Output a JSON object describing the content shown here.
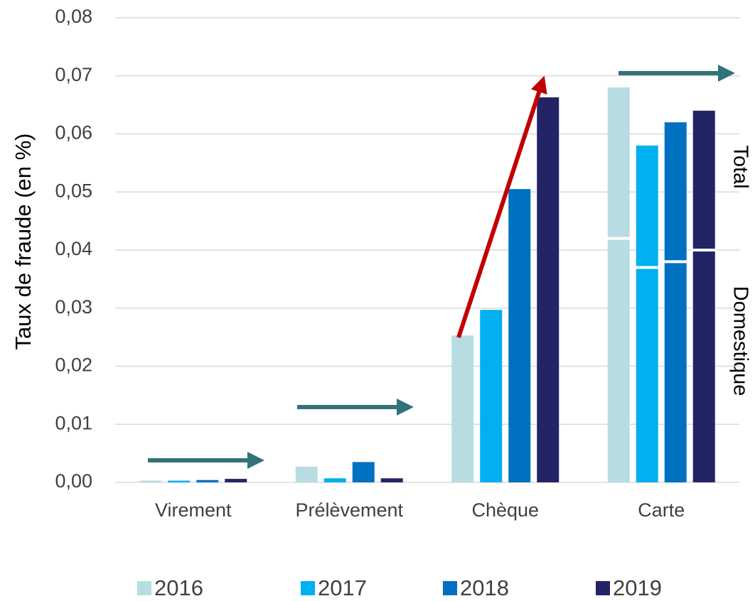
{
  "chart_data": {
    "type": "bar",
    "y_label": "Taux de fraude (en %)",
    "categories": [
      "Virement",
      "Prélèvement",
      "Chèque",
      "Carte"
    ],
    "series": [
      {
        "name": "2016",
        "color": "#b7dde3",
        "values": [
          0.0003,
          0.0027,
          0.0253,
          0.068
        ]
      },
      {
        "name": "2017",
        "color": "#00b0f0",
        "values": [
          0.0003,
          0.0007,
          0.0297,
          0.058
        ]
      },
      {
        "name": "2018",
        "color": "#0070c0",
        "values": [
          0.0004,
          0.0035,
          0.0505,
          0.062
        ]
      },
      {
        "name": "2019",
        "color": "#232466",
        "values": [
          0.0006,
          0.0007,
          0.0663,
          0.064
        ]
      }
    ],
    "carte_split": {
      "total_label": "Total",
      "domestic_label": "Domestique",
      "domestic_values": [
        0.042,
        0.037,
        0.038,
        0.04
      ]
    },
    "ylim": [
      0,
      0.08
    ],
    "yticks": [
      {
        "value": 0,
        "label": "0,00"
      },
      {
        "value": 0.01,
        "label": "0,01"
      },
      {
        "value": 0.02,
        "label": "0,02"
      },
      {
        "value": 0.03,
        "label": "0,03"
      },
      {
        "value": 0.04,
        "label": "0,04"
      },
      {
        "value": 0.05,
        "label": "0,05"
      },
      {
        "value": 0.06,
        "label": "0,06"
      },
      {
        "value": 0.07,
        "label": "0,07"
      },
      {
        "value": 0.08,
        "label": "0,08"
      }
    ],
    "grid": true
  }
}
